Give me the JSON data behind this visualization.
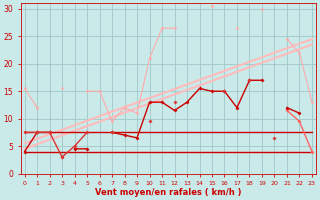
{
  "x": [
    0,
    1,
    2,
    3,
    4,
    5,
    6,
    7,
    8,
    9,
    10,
    11,
    12,
    13,
    14,
    15,
    16,
    17,
    18,
    19,
    20,
    21,
    22,
    23
  ],
  "line1": [
    15.5,
    12,
    null,
    15.5,
    null,
    15,
    15,
    9.5,
    12,
    11,
    21,
    26.5,
    26.5,
    null,
    null,
    30.5,
    null,
    26.5,
    null,
    30,
    null,
    24.5,
    22,
    13
  ],
  "line_trend1_x": [
    0,
    23
  ],
  "line_trend1_y": [
    5.5,
    24.5
  ],
  "line_trend2_x": [
    0,
    23
  ],
  "line_trend2_y": [
    4.5,
    23.5
  ],
  "line3": [
    4,
    7.5,
    7.5,
    null,
    4.5,
    4.5,
    null,
    7.5,
    7,
    6.5,
    13,
    13,
    11.5,
    13,
    15.5,
    15,
    15,
    12,
    17,
    17,
    null,
    12,
    11,
    null
  ],
  "line4": [
    7.5,
    7.5,
    7.5,
    3,
    5,
    7.5,
    null,
    7.5,
    null,
    null,
    9.5,
    null,
    13,
    null,
    null,
    null,
    15,
    null,
    17,
    null,
    6.5,
    null,
    null,
    null
  ],
  "line5_x": [
    0,
    23
  ],
  "line5_y": [
    7.5,
    7.5
  ],
  "line6_x": [
    0,
    23
  ],
  "line6_y": [
    4.0,
    4.0
  ],
  "line7": [
    null,
    null,
    null,
    3,
    null,
    null,
    null,
    null,
    null,
    null,
    null,
    null,
    null,
    null,
    null,
    null,
    null,
    null,
    null,
    null,
    null,
    11.5,
    9.5,
    4
  ],
  "bg_color": "#caeaea",
  "grid_color": "#a0c8c8",
  "line1_color": "#ffaaaa",
  "line3_color": "#cc0000",
  "line4_color": "#dd3333",
  "line5_color": "#cc0000",
  "line6_color": "#cc0000",
  "line7_color": "#ff6666",
  "trend_color": "#ffbbbb",
  "xlabel": "Vent moyen/en rafales ( km/h )",
  "xlabel_color": "#cc0000",
  "tick_color": "#cc0000",
  "xlim": [
    -0.3,
    23.3
  ],
  "ylim": [
    0,
    31
  ],
  "yticks": [
    0,
    5,
    10,
    15,
    20,
    25,
    30
  ]
}
